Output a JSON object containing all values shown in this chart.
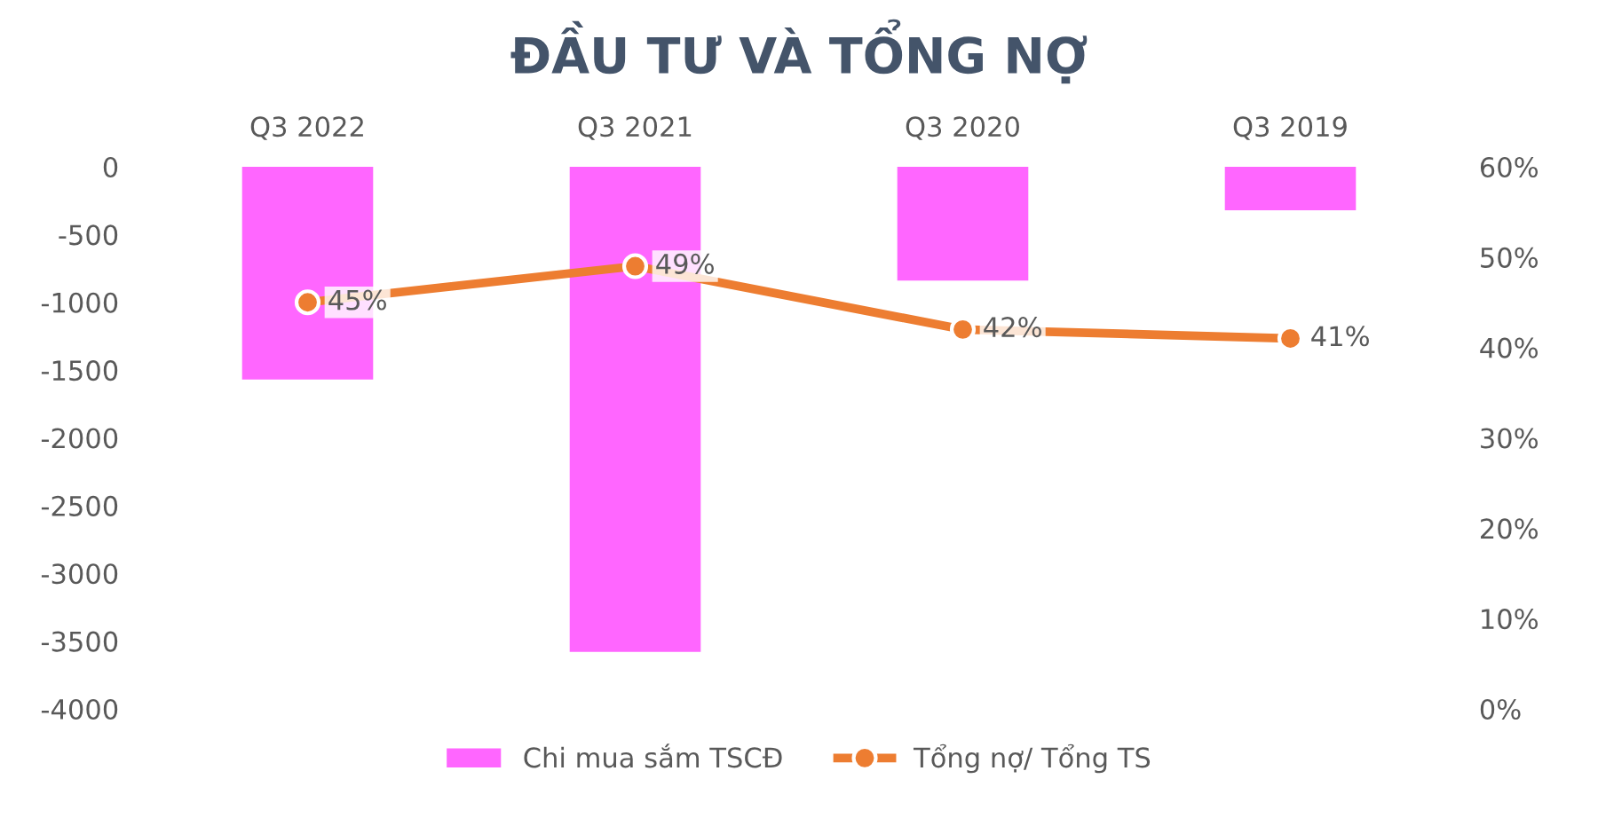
{
  "chart_data": {
    "type": "bar",
    "title": "ĐẦU TƯ VÀ TỔNG NỢ",
    "categories": [
      "Q3 2022",
      "Q3 2021",
      "Q3 2020",
      "Q3 2019"
    ],
    "series": [
      {
        "name": "Chi mua sắm TSCĐ",
        "color": "#ff66ff",
        "values": [
          -1570,
          -3580,
          -840,
          -320
        ]
      },
      {
        "name": "Tổng nợ/ Tổng TS",
        "type": "line",
        "axis": "y2",
        "color": "#ed7d31",
        "values": [
          45,
          49,
          42,
          41
        ],
        "value_labels": [
          "45%",
          "49%",
          "42%",
          "41%"
        ],
        "marker": "circle"
      }
    ],
    "ylim": [
      -4000,
      0
    ],
    "yticks": [
      -4000,
      -3500,
      -3000,
      -2500,
      -2000,
      -1500,
      -1000,
      -500,
      0
    ],
    "y2lim": [
      0,
      60
    ],
    "y2ticks": [
      {
        "value": 0,
        "label": "0%"
      },
      {
        "value": 10,
        "label": "10%"
      },
      {
        "value": 20,
        "label": "20%"
      },
      {
        "value": 30,
        "label": "30%"
      },
      {
        "value": 40,
        "label": "40%"
      },
      {
        "value": 50,
        "label": "50%"
      },
      {
        "value": 60,
        "label": "60%"
      }
    ],
    "legend": "bottom",
    "grid": false
  }
}
